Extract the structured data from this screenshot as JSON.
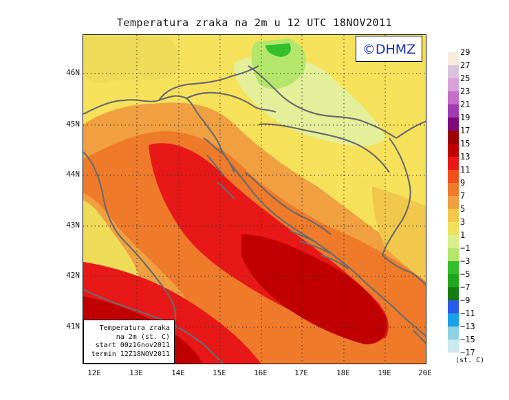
{
  "title": "Temperatura zraka na 2m u 12 UTC 18NOV2011",
  "copyright": "©DHMZ",
  "info_box": {
    "line1": "Temperatura zraka",
    "line2": "na 2m (st. C)",
    "line3": "start 00z16nov2011",
    "line4": "termin 12Z18NOV2011"
  },
  "map": {
    "lat_labels": [
      "46N",
      "45N",
      "44N",
      "43N",
      "42N",
      "41N"
    ],
    "lon_labels": [
      "12E",
      "13E",
      "14E",
      "15E",
      "16E",
      "17E",
      "18E",
      "19E",
      "20E"
    ],
    "colors": {
      "background": "#f5e25a",
      "coastline": "#6b6b6b",
      "border": "#6b6b6b",
      "grid": "#333333"
    }
  },
  "legend": {
    "unit": "(st. C)",
    "labels": [
      "29",
      "27",
      "25",
      "23",
      "21",
      "19",
      "17",
      "15",
      "13",
      "11",
      "9",
      "7",
      "5",
      "3",
      "1",
      "−1",
      "−3",
      "−5",
      "−7",
      "−9",
      "−11",
      "−13",
      "−15",
      "−17"
    ],
    "colors": [
      "#f8ecdc",
      "#dbc3dd",
      "#d8a2d8",
      "#c56ec8",
      "#a13cb2",
      "#7e0a7a",
      "#9c0000",
      "#c00000",
      "#e81818",
      "#f0501c",
      "#ee7a2a",
      "#f0a040",
      "#f2c84c",
      "#eee05e",
      "#d8ef8a",
      "#b3e66a",
      "#33bf2d",
      "#22a61c",
      "#147b14",
      "#2d5ae8",
      "#19a0e8",
      "#8fd0e0",
      "#c7e9ef",
      "#eefcfc"
    ]
  }
}
